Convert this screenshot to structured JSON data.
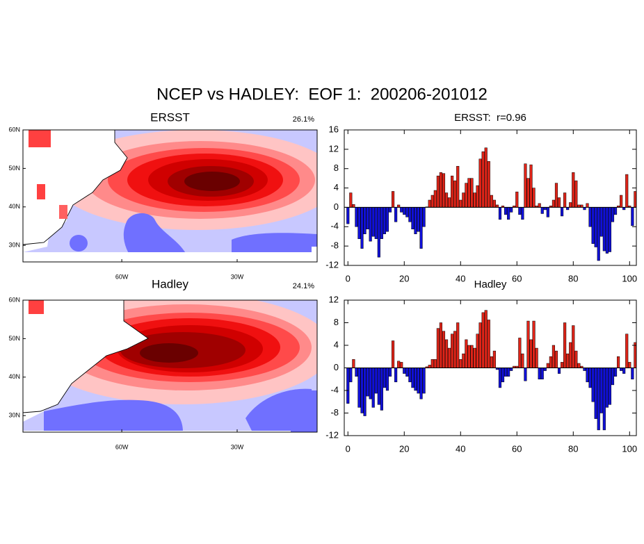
{
  "title": "NCEP vs HADLEY:  EOF 1:  200206-201012",
  "chart_data": [
    {
      "type": "map",
      "title": "ERSST",
      "annotation": "26.1%",
      "xlim": [
        -85.7,
        -9.2
      ],
      "ylim": [
        25.7,
        60
      ],
      "xticks": [
        {
          "value": -60,
          "label": "60W"
        },
        {
          "value": -30,
          "label": "30W"
        }
      ],
      "yticks": [
        {
          "value": 60,
          "label": "60N"
        },
        {
          "value": 50,
          "label": "50N"
        },
        {
          "value": 40,
          "label": "40N"
        },
        {
          "value": 30,
          "label": "30N"
        }
      ]
    },
    {
      "type": "bar",
      "title": "ERSST:  r=0.96",
      "color_above": "#e02418",
      "color_below": "#1010d8",
      "xlim": [
        -1.3,
        102.4
      ],
      "ylim": [
        -12,
        16
      ],
      "xticks": [
        0,
        20,
        40,
        60,
        80,
        100
      ],
      "yticks": [
        -12,
        -8,
        -4,
        0,
        4,
        8,
        12,
        16
      ],
      "x": [
        0,
        1,
        2,
        3,
        4,
        5,
        6,
        7,
        8,
        9,
        10,
        11,
        12,
        13,
        14,
        15,
        16,
        17,
        18,
        19,
        20,
        21,
        22,
        23,
        24,
        25,
        26,
        27,
        28,
        29,
        30,
        31,
        32,
        33,
        34,
        35,
        36,
        37,
        38,
        39,
        40,
        41,
        42,
        43,
        44,
        45,
        46,
        47,
        48,
        49,
        50,
        51,
        52,
        53,
        54,
        55,
        56,
        57,
        58,
        59,
        60,
        61,
        62,
        63,
        64,
        65,
        66,
        67,
        68,
        69,
        70,
        71,
        72,
        73,
        74,
        75,
        76,
        77,
        78,
        79,
        80,
        81,
        82,
        83,
        84,
        85,
        86,
        87,
        88,
        89,
        90,
        91,
        92,
        93,
        94,
        95,
        96,
        97,
        98,
        99,
        100,
        101,
        102
      ],
      "values": [
        -3.4,
        3,
        0.6,
        -4,
        -6.5,
        -8.5,
        -5.5,
        -4.5,
        -7,
        -6,
        -6.5,
        -10.3,
        -6.5,
        -5.5,
        -5,
        -1,
        3.3,
        -3,
        0.5,
        -1,
        -1.5,
        -2,
        -3,
        -4.5,
        -5.5,
        -5,
        -8.5,
        -4,
        0.1,
        1.5,
        2.5,
        3.5,
        6.5,
        7.2,
        7,
        3,
        2,
        6.5,
        5.5,
        8.5,
        1.5,
        3,
        5,
        6,
        6,
        3,
        4.5,
        10,
        11.5,
        12.3,
        9.5,
        2.5,
        1.5,
        0.5,
        -2.5,
        0.3,
        -1.5,
        -2.5,
        -1,
        0.3,
        3.2,
        -1.5,
        -2.5,
        9,
        6,
        8.8,
        4,
        0.3,
        0.8,
        -1.3,
        -0.5,
        -2,
        0.3,
        1.5,
        5,
        2,
        -1.8,
        3,
        -0.5,
        1,
        7.2,
        5.5,
        0.5,
        0.5,
        -0.5,
        0.8,
        -4,
        -7.5,
        -8.2,
        -11,
        -6,
        -9,
        -9.5,
        -9.2,
        -3,
        -1.5,
        0.3,
        2.5,
        -0.5,
        6.8,
        0.3,
        -3.8,
        3.3
      ]
    },
    {
      "type": "map",
      "title": "Hadley",
      "annotation": "24.1%",
      "xlim": [
        -85.7,
        -9.2
      ],
      "ylim": [
        25.7,
        60
      ],
      "xticks": [
        {
          "value": -60,
          "label": "60W"
        },
        {
          "value": -30,
          "label": "30W"
        }
      ],
      "yticks": [
        {
          "value": 60,
          "label": "60N"
        },
        {
          "value": 50,
          "label": "50N"
        },
        {
          "value": 40,
          "label": "40N"
        },
        {
          "value": 30,
          "label": "30N"
        }
      ]
    },
    {
      "type": "bar",
      "title": "Hadley",
      "color_above": "#e02418",
      "color_below": "#1010d8",
      "xlim": [
        -1.3,
        102.4
      ],
      "ylim": [
        -12,
        12
      ],
      "xticks": [
        0,
        20,
        40,
        60,
        80,
        100
      ],
      "yticks": [
        -12,
        -8,
        -4,
        0,
        4,
        8,
        12
      ],
      "x": [
        0,
        1,
        2,
        3,
        4,
        5,
        6,
        7,
        8,
        9,
        10,
        11,
        12,
        13,
        14,
        15,
        16,
        17,
        18,
        19,
        20,
        21,
        22,
        23,
        24,
        25,
        26,
        27,
        28,
        29,
        30,
        31,
        32,
        33,
        34,
        35,
        36,
        37,
        38,
        39,
        40,
        41,
        42,
        43,
        44,
        45,
        46,
        47,
        48,
        49,
        50,
        51,
        52,
        53,
        54,
        55,
        56,
        57,
        58,
        59,
        60,
        61,
        62,
        63,
        64,
        65,
        66,
        67,
        68,
        69,
        70,
        71,
        72,
        73,
        74,
        75,
        76,
        77,
        78,
        79,
        80,
        81,
        82,
        83,
        84,
        85,
        86,
        87,
        88,
        89,
        90,
        91,
        92,
        93,
        94,
        95,
        96,
        97,
        98,
        99,
        100,
        101,
        102
      ],
      "values": [
        -6.3,
        -2.5,
        1.5,
        -1.5,
        -7,
        -8,
        -8.5,
        -5,
        -5.5,
        -7,
        -4.5,
        -6.5,
        -7.5,
        -3.5,
        -4,
        -1.5,
        4.8,
        -2.5,
        1.2,
        1,
        -1,
        -1.5,
        -2.5,
        -3.5,
        -4,
        -4.5,
        -5.5,
        -4.5,
        0.2,
        0.5,
        1.5,
        1.5,
        7,
        8,
        6.5,
        5,
        3.5,
        6,
        6.5,
        8,
        1.5,
        2.5,
        5,
        4,
        4,
        3.5,
        6,
        8,
        9.8,
        10.2,
        8.5,
        2,
        3,
        -0.3,
        -3.5,
        -2.5,
        -1.5,
        -1.5,
        -0.5,
        0.3,
        0.3,
        5.3,
        2.5,
        -2.3,
        8.3,
        5,
        8.3,
        3.5,
        -2,
        -2,
        -0.5,
        0.8,
        2,
        4,
        3,
        -1,
        1,
        8,
        2.5,
        4.5,
        7.5,
        3,
        0.8,
        0.3,
        -0.5,
        -2.5,
        -3.5,
        -6,
        -9,
        -11,
        -8,
        -11,
        -7,
        -6.5,
        -3,
        -1.5,
        2,
        -0.5,
        -1,
        6,
        1,
        -2,
        4.5
      ]
    }
  ]
}
